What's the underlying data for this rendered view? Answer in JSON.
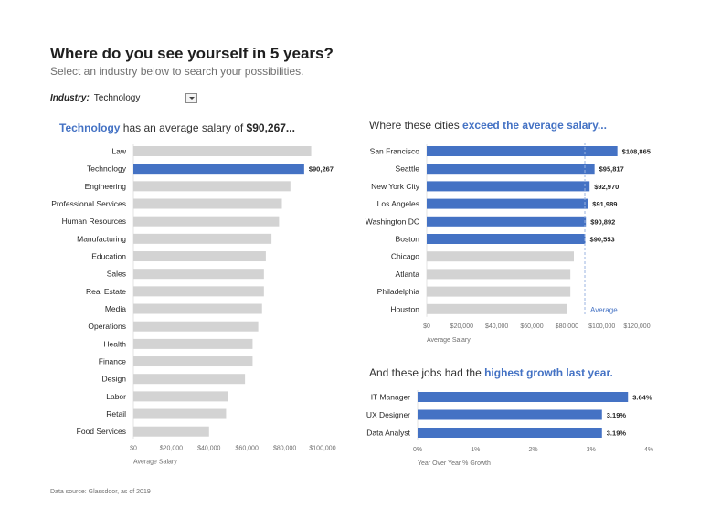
{
  "title": "Where do you see yourself in 5 years?",
  "subtitle": "Select an industry below to search your possibilities.",
  "filter": {
    "label": "Industry:",
    "value": "Technology",
    "dropdown_icon": "chevron-down-icon"
  },
  "left_heading": {
    "industry": "Technology",
    "text": " has an average salary of ",
    "amount": "$90,267..."
  },
  "cities_heading": {
    "prefix": "Where these cities ",
    "accent": "exceed the average salary..."
  },
  "jobs_heading": {
    "prefix": "And these jobs had the ",
    "accent": "highest growth last year."
  },
  "footer": "Data source: Glassdoor, as of 2019",
  "colors": {
    "highlight": "#4472c4",
    "base": "#d3d3d3",
    "average_line": "#9bb5e0"
  },
  "chart_data": [
    {
      "type": "bar",
      "orientation": "horizontal",
      "categories": [
        "Law",
        "Technology",
        "Engineering",
        "Professional Services",
        "Human Resources",
        "Manufacturing",
        "Education",
        "Sales",
        "Real Estate",
        "Media",
        "Operations",
        "Health",
        "Finance",
        "Design",
        "Labor",
        "Retail",
        "Food Services"
      ],
      "values": [
        94000,
        90267,
        83000,
        78500,
        77000,
        73000,
        70000,
        69000,
        69000,
        68000,
        66000,
        63000,
        63000,
        59000,
        50000,
        49000,
        40000
      ],
      "highlight": [
        "Technology"
      ],
      "data_labels": {
        "Technology": "$90,267"
      },
      "xlabel": "Average Salary",
      "xlim": [
        0,
        100000
      ],
      "xticks": [
        0,
        20000,
        40000,
        60000,
        80000,
        100000
      ],
      "xtick_labels": [
        "$0",
        "$20,000",
        "$40,000",
        "$60,000",
        "$80,000",
        "$100,000"
      ]
    },
    {
      "type": "bar",
      "orientation": "horizontal",
      "categories": [
        "San Francisco",
        "Seattle",
        "New York City",
        "Los Angeles",
        "Washington DC",
        "Boston",
        "Chicago",
        "Atlanta",
        "Philadelphia",
        "Houston"
      ],
      "values": [
        108865,
        95817,
        92970,
        91989,
        90892,
        90553,
        84000,
        82000,
        82000,
        80000
      ],
      "highlight": [
        "San Francisco",
        "Seattle",
        "New York City",
        "Los Angeles",
        "Washington DC",
        "Boston"
      ],
      "data_labels": {
        "San Francisco": "$108,865",
        "Seattle": "$95,817",
        "New York City": "$92,970",
        "Los Angeles": "$91,989",
        "Washington DC": "$90,892",
        "Boston": "$90,553"
      },
      "reference_line": {
        "value": 90267,
        "label": "Average"
      },
      "xlabel": "Average Salary",
      "xlim": [
        0,
        120000
      ],
      "xticks": [
        0,
        20000,
        40000,
        60000,
        80000,
        100000,
        120000
      ],
      "xtick_labels": [
        "$0",
        "$20,000",
        "$40,000",
        "$60,000",
        "$80,000",
        "$100,000",
        "$120,000"
      ]
    },
    {
      "type": "bar",
      "orientation": "horizontal",
      "categories": [
        "IT Manager",
        "UX Designer",
        "Data Analyst"
      ],
      "values": [
        3.64,
        3.19,
        3.19
      ],
      "highlight": [
        "IT Manager",
        "UX Designer",
        "Data Analyst"
      ],
      "data_labels": {
        "IT Manager": "3.64%",
        "UX Designer": "3.19%",
        "Data Analyst": "3.19%"
      },
      "xlabel": "Year Over Year % Growth",
      "xlim": [
        0,
        4
      ],
      "xticks": [
        0,
        1,
        2,
        3,
        4
      ],
      "xtick_labels": [
        "0%",
        "1%",
        "2%",
        "3%",
        "4%"
      ]
    }
  ]
}
